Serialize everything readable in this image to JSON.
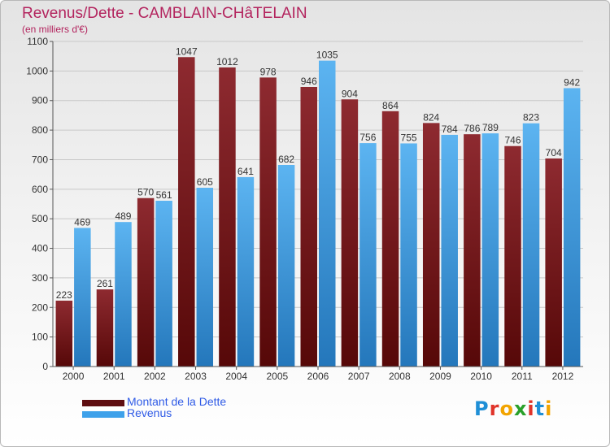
{
  "header": {
    "title": "Revenus/Dette - CAMBLAIN-CHâTELAIN",
    "subtitle": "(en milliers d'€)"
  },
  "chart_data": {
    "type": "bar",
    "categories": [
      "2000",
      "2001",
      "2002",
      "2003",
      "2004",
      "2005",
      "2006",
      "2007",
      "2008",
      "2009",
      "2010",
      "2011",
      "2012"
    ],
    "series": [
      {
        "name": "Montant de la Dette",
        "color": "#7a1f22",
        "values": [
          223,
          261,
          570,
          1047,
          1012,
          978,
          946,
          904,
          864,
          824,
          786,
          746,
          704
        ]
      },
      {
        "name": "Revenus",
        "color": "#3ea1ea",
        "values": [
          469,
          489,
          561,
          605,
          641,
          682,
          1035,
          756,
          755,
          784,
          789,
          823,
          942
        ]
      }
    ],
    "ylim": [
      0,
      1100
    ],
    "yticks": [
      0,
      100,
      200,
      300,
      400,
      500,
      600,
      700,
      800,
      900,
      1000,
      1100
    ],
    "grid": true,
    "legend_position": "bottom-left"
  },
  "legend": {
    "items": [
      {
        "label": "Montant de la Dette",
        "color": "#5e0d10"
      },
      {
        "label": "Revenus",
        "color": "#3ea1ea"
      }
    ]
  },
  "logo": {
    "letters": [
      "P",
      "r",
      "o",
      "x",
      "i",
      "t",
      "i"
    ],
    "colors": [
      "#1f8fd6",
      "#e0342a",
      "#f2a400",
      "#2aa02a",
      "#e0342a",
      "#1f8fd6",
      "#f2a400"
    ]
  }
}
